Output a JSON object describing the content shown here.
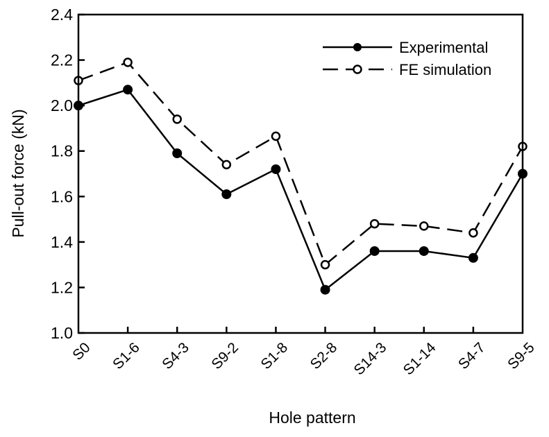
{
  "chart_data": {
    "type": "line",
    "title": "",
    "xlabel": "Hole pattern",
    "ylabel": "Pull-out force (kN)",
    "ylim": [
      1.0,
      2.4
    ],
    "yticks": [
      "1.0",
      "1.2",
      "1.4",
      "1.6",
      "1.8",
      "2.0",
      "2.2",
      "2.4"
    ],
    "grid": false,
    "legend_position": "top-right",
    "categories": [
      "S0",
      "S1-6",
      "S4-3",
      "S9-2",
      "S1-8",
      "S2-8",
      "S14-3",
      "S1-14",
      "S4-7",
      "S9-5"
    ],
    "series": [
      {
        "name": "Experimental",
        "style": "solid-filled",
        "values": [
          2.0,
          2.07,
          1.79,
          1.61,
          1.72,
          1.19,
          1.36,
          1.36,
          1.33,
          1.7
        ]
      },
      {
        "name": "FE simulation",
        "style": "dashed-open",
        "values": [
          2.11,
          2.19,
          1.94,
          1.74,
          1.865,
          1.3,
          1.48,
          1.47,
          1.44,
          1.82
        ]
      }
    ]
  }
}
